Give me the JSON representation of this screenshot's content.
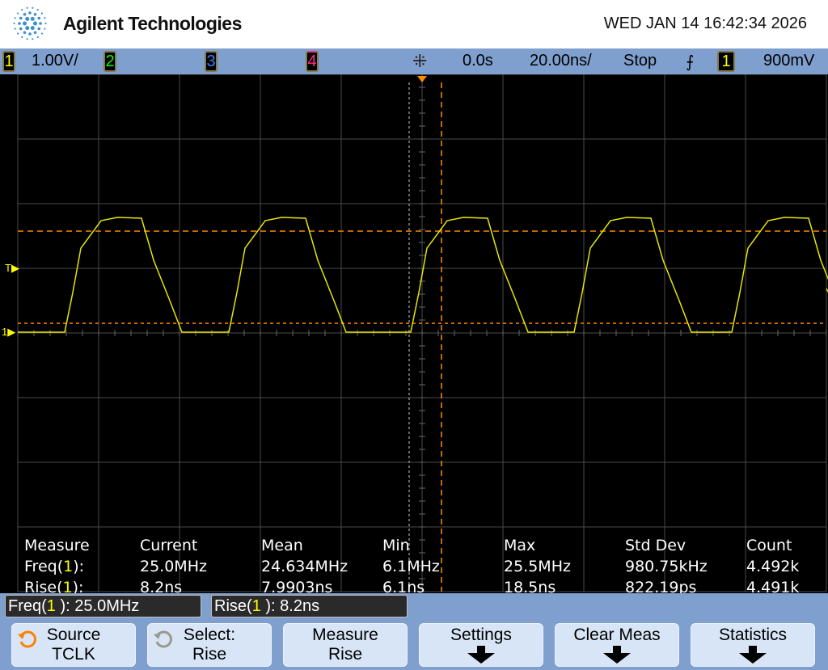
{
  "header": {
    "brand": "Agilent Technologies",
    "datetime": "WED JAN 14 16:42:34 2026"
  },
  "status_bar": {
    "ch1": {
      "num": "1",
      "scale": "1.00V/",
      "color": "#ffff00"
    },
    "ch2": {
      "num": "2",
      "color": "#00ff00"
    },
    "ch3": {
      "num": "3",
      "color": "#3a7bff"
    },
    "ch4": {
      "num": "4",
      "color": "#ff2e8a"
    },
    "acq_icon": "sparkle-icon",
    "delay": "0.0s",
    "timebase": "20.00ns/",
    "run_state": "Stop",
    "trigger_edge_icon": "rising-edge-icon",
    "trigger_source": "1",
    "trigger_level": "900mV"
  },
  "colors": {
    "trace": "#e6e600",
    "cursor": "#ff8c00",
    "grid": "#4a4a4a",
    "accent": "#7f9fce"
  },
  "measurements": {
    "headers": [
      "Measure",
      "Current",
      "Mean",
      "Min",
      "Max",
      "Std Dev",
      "Count"
    ],
    "rows": [
      {
        "name": "Freq",
        "src": "1",
        "values": [
          "25.0MHz",
          "24.634MHz",
          "6.1MHz",
          "25.5MHz",
          "980.75kHz",
          "4.492k"
        ]
      },
      {
        "name": "Rise",
        "src": "1",
        "values": [
          "8.2ns",
          "7.9903ns",
          "6.1ns",
          "18.5ns",
          "822.19ps",
          "4.491k"
        ]
      }
    ]
  },
  "readouts": [
    {
      "name": "Freq",
      "src": "1",
      "value": "25.0MHz"
    },
    {
      "name": "Rise",
      "src": "1",
      "value": "8.2ns"
    }
  ],
  "markers": {
    "trigger": "T",
    "ground": "1"
  },
  "softkeys": [
    {
      "line1": "Source",
      "line2": "TCLK",
      "icon": "rotate-knob-icon"
    },
    {
      "line1": "Select:",
      "line2": "Rise",
      "icon": "rotate-knob-icon"
    },
    {
      "line1": "Measure",
      "line2": "Rise"
    },
    {
      "line1": "Settings",
      "arrow": true
    },
    {
      "line1": "Clear Meas",
      "arrow": true
    },
    {
      "line1": "Statistics",
      "arrow": true
    }
  ]
}
